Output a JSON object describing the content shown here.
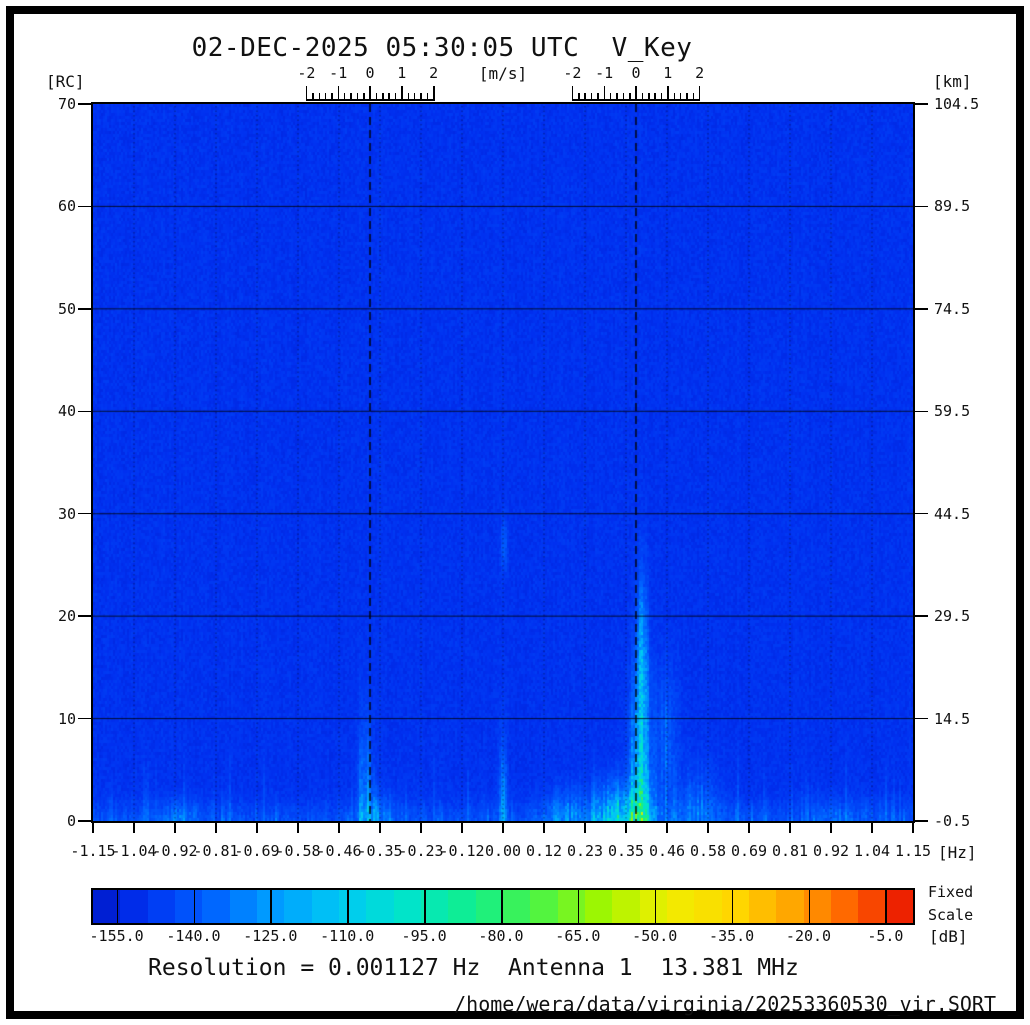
{
  "title": "02-DEC-2025 05:30:05 UTC  V_Key",
  "axes": {
    "left": {
      "unit": "[RC]",
      "ticks": [
        "70",
        "60",
        "50",
        "40",
        "30",
        "20",
        "10",
        "0"
      ]
    },
    "right": {
      "unit": "[km]",
      "ticks": [
        "104.5",
        "89.5",
        "74.5",
        "59.5",
        "44.5",
        "29.5",
        "14.5",
        "-0.5"
      ]
    },
    "bottom": {
      "unit": "[Hz]",
      "ticks": [
        "-1.15",
        "-1.04",
        "-0.92",
        "-0.81",
        "-0.69",
        "-0.58",
        "-0.46",
        "-0.35",
        "-0.23",
        "-0.12",
        "0.00",
        "0.12",
        "0.23",
        "0.35",
        "0.46",
        "0.58",
        "0.69",
        "0.81",
        "0.92",
        "1.04",
        "1.15"
      ]
    },
    "top": {
      "unit": "[m/s]",
      "ticks": [
        "-2",
        "-1",
        "0",
        "1",
        "2"
      ]
    }
  },
  "colorbar": {
    "unit": "[dB]",
    "labels": [
      "-155.0",
      "-140.0",
      "-125.0",
      "-110.0",
      "-95.0",
      "-80.0",
      "-65.0",
      "-50.0",
      "-35.0",
      "-20.0",
      "-5.0"
    ],
    "range_db": [
      -160,
      0
    ],
    "segments": 30,
    "scale_note_line1": "Fixed",
    "scale_note_line2": "Scale",
    "stops": [
      [
        0.0,
        "#0018c8"
      ],
      [
        0.06,
        "#0030f0"
      ],
      [
        0.14,
        "#0060ff"
      ],
      [
        0.22,
        "#009cff"
      ],
      [
        0.3,
        "#00c8f4"
      ],
      [
        0.38,
        "#00e4cc"
      ],
      [
        0.46,
        "#10ee8e"
      ],
      [
        0.54,
        "#48f448"
      ],
      [
        0.62,
        "#a0f600"
      ],
      [
        0.7,
        "#f0ee00"
      ],
      [
        0.78,
        "#ffd800"
      ],
      [
        0.86,
        "#ffa000"
      ],
      [
        0.93,
        "#ff5c00"
      ],
      [
        1.0,
        "#e81000"
      ]
    ]
  },
  "footer": {
    "resolution": "Resolution = 0.001127 Hz  Antenna 1  13.381 MHz",
    "file_path": "/home/wera/data/virginia/20253360530_vir.SORT"
  },
  "chart_data": {
    "type": "heatmap",
    "title": "02-DEC-2025 05:30:05 UTC  V_Key",
    "xlabel": "[Hz]",
    "x_range": [
      -1.15,
      1.15
    ],
    "x_tick_step": 0.115,
    "ylabel_left": "[RC]",
    "y_range": [
      0,
      70
    ],
    "ylabel_right": "[km]",
    "y_right_range": [
      -0.5,
      104.5
    ],
    "color_range_db": [
      -160,
      0
    ],
    "background_db": -150,
    "grid": {
      "horizontal_solid_rc": [
        10,
        20,
        30,
        40,
        50,
        60
      ],
      "vertical_dotted_at_ticks": true
    },
    "bragg_lines_hz": [
      -0.373,
      0.373
    ],
    "velocity_rulers": {
      "unit": "[m/s]",
      "mps_ticks": [
        -2,
        -1,
        0,
        1,
        2
      ],
      "minor_step_mps": 0.2,
      "centers_hz": [
        -0.373,
        0.373
      ],
      "hz_per_mps": 0.0892
    },
    "features": [
      {
        "hz": 0.33,
        "hz_sigma": 0.055,
        "rc": 0,
        "rc_sigma": 2.4,
        "amp_db": 52,
        "note": "bright surface echo band right of center"
      },
      {
        "hz": 0.385,
        "hz_sigma": 0.022,
        "rc": 2,
        "rc_sigma": 8.0,
        "amp_db": 42,
        "note": "right Bragg-line plume lower part"
      },
      {
        "hz": 0.39,
        "hz_sigma": 0.012,
        "rc": 15,
        "rc_sigma": 6.0,
        "amp_db": 26,
        "note": "right Bragg-line plume upper part to ~22 RC"
      },
      {
        "hz": 0.46,
        "hz_sigma": 0.022,
        "rc": 8,
        "rc_sigma": 5.0,
        "amp_db": 16,
        "note": "side streak right of plume"
      },
      {
        "hz": 0.55,
        "hz_sigma": 0.04,
        "rc": 1,
        "rc_sigma": 3.0,
        "amp_db": 16,
        "note": "low-range tail toward 0.6 Hz"
      },
      {
        "hz": 0.17,
        "hz_sigma": 0.04,
        "rc": 0,
        "rc_sigma": 2.0,
        "amp_db": 20,
        "note": "speckle left of bright band"
      },
      {
        "hz": -0.385,
        "hz_sigma": 0.013,
        "rc": 2,
        "rc_sigma": 5.5,
        "amp_db": 26,
        "note": "left Bragg-line streaks to ~12 RC"
      },
      {
        "hz": -0.36,
        "hz_sigma": 0.03,
        "rc": 0,
        "rc_sigma": 2.0,
        "amp_db": 18,
        "note": "left Bragg low-range noise"
      },
      {
        "hz": 0.0,
        "hz_sigma": 0.007,
        "rc": 2,
        "rc_sigma": 4.0,
        "amp_db": 32,
        "note": "zero-Doppler column"
      },
      {
        "hz": 0.003,
        "hz_sigma": 0.006,
        "rc": 27,
        "rc_sigma": 1.8,
        "amp_db": 20,
        "note": "zero-Doppler blob near 27 RC"
      },
      {
        "hz": -0.9,
        "hz_sigma": 0.04,
        "rc": 0,
        "rc_sigma": 1.5,
        "amp_db": 10,
        "note": "faint patch far left"
      },
      {
        "hz": 0.95,
        "hz_sigma": 0.05,
        "rc": 0,
        "rc_sigma": 1.5,
        "amp_db": 8,
        "note": "faint patch far right"
      },
      {
        "hz": 0.0,
        "hz_sigma": 9.0,
        "rc": 0,
        "rc_sigma": 1.3,
        "amp_db": 10,
        "note": "full-width near-range noise floor band"
      }
    ],
    "noise": {
      "speckle_prob": 0.15,
      "speckle_max_db": 9,
      "speckle_rc_extent": 8,
      "cell_jitter_db": 2.5,
      "column_variation": 0.55,
      "seed": 20253360
    }
  }
}
